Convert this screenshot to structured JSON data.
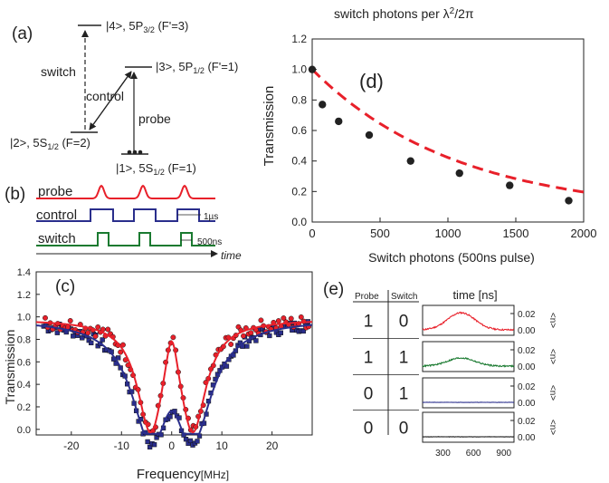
{
  "panel_labels": {
    "a": "(a)",
    "b": "(b)",
    "c": "(c)",
    "d": "(d)",
    "e": "(e)"
  },
  "level_diagram": {
    "state4_base": "|4>, 5P",
    "state4_sub": "3/2",
    "state4_tail": " (F'=3)",
    "state3_base": "|3>, 5P",
    "state3_sub": "1/2",
    "state3_tail": " (F'=1)",
    "state2_base": "|2>, 5S",
    "state2_sub": "1/2",
    "state2_tail": " (F=2)",
    "state1_base": "|1>, 5S",
    "state1_sub": "1/2",
    "state1_tail": " (F=1)",
    "switch_label": "switch",
    "control_label": "control",
    "probe_label": "probe"
  },
  "pulse_sequence": {
    "probe_label": "probe",
    "control_label": "control",
    "switch_label": "switch",
    "scale_1": "1µs",
    "scale_2": "500ns",
    "time_label": "time"
  },
  "colors": {
    "probe": "#e8202a",
    "control": "#2a2e8c",
    "switch": "#1a7a30"
  },
  "chart_data": [
    {
      "id": "c",
      "type": "scatter",
      "ylabel": "Transmission",
      "xlabel": "Frequency",
      "xlabel_unit": "[MHz]",
      "xlim": [
        -27,
        28
      ],
      "ylim": [
        -0.05,
        1.4
      ],
      "xticks": [
        -20,
        -10,
        0,
        10,
        20
      ],
      "yticks": [
        0.0,
        0.2,
        0.4,
        0.6,
        0.8,
        1.0,
        1.2,
        1.4
      ],
      "series": [
        {
          "color": "#e8202a",
          "marker": "circle"
        },
        {
          "color": "#2a2e8c",
          "marker": "square"
        }
      ]
    },
    {
      "id": "d",
      "type": "scatter",
      "title_main": "switch photons per λ",
      "title_sup": "2",
      "title_tail": "/2π",
      "ylabel": "Transmission",
      "xlabel": "Switch photons (500ns pulse)",
      "xlim": [
        0,
        2000
      ],
      "ylim": [
        0,
        1.2
      ],
      "xticks": [
        0,
        500,
        1000,
        1500,
        2000
      ],
      "yticks": [
        0.0,
        0.2,
        0.4,
        0.6,
        0.8,
        1.0,
        1.2
      ],
      "x": [
        0,
        75,
        195,
        420,
        725,
        1085,
        1455,
        1890
      ],
      "y": [
        1.0,
        0.77,
        0.66,
        0.57,
        0.4,
        0.32,
        0.24,
        0.14
      ],
      "fit": {
        "style": "dashed",
        "color": "#e8202a",
        "form": "0.05+0.95*exp(-x/1070)"
      }
    },
    {
      "id": "e",
      "type": "table",
      "columns": [
        "Probe",
        "Switch"
      ],
      "rows": [
        [
          1,
          0
        ],
        [
          1,
          1
        ],
        [
          0,
          1
        ],
        [
          0,
          0
        ]
      ],
      "trace_xlabel": "time [ns]",
      "trace_xticks": [
        300,
        600,
        900
      ],
      "trace_yticks": [
        "0.02",
        "0.00"
      ],
      "trace_ylabel": "<n>",
      "trace_colors": [
        "#e8202a",
        "#1a7a30",
        "#2a2e8c",
        "#111111"
      ],
      "trace_amplitude": [
        0.021,
        0.01,
        0.0,
        0.0
      ]
    }
  ]
}
